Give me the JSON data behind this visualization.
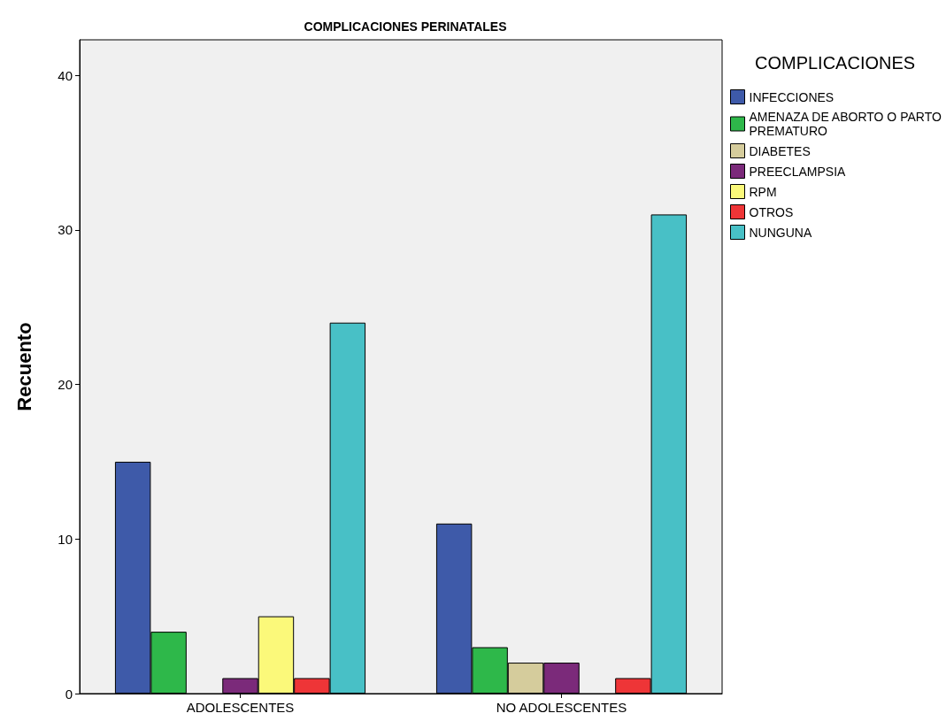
{
  "chart_data": {
    "type": "bar",
    "title": "COMPLICACIONES PERINATALES",
    "ylabel": "Recuento",
    "legend_title": "COMPLICACIONES",
    "categories": [
      "ADOLESCENTES",
      "NO ADOLESCENTES"
    ],
    "series": [
      {
        "name": "INFECCIONES",
        "color": "#3e5aa9",
        "values": [
          15,
          11
        ]
      },
      {
        "name": "AMENAZA DE ABORTO O PARTO PREMATURO",
        "color": "#2eb84a",
        "values": [
          4,
          3
        ]
      },
      {
        "name": "DIABETES",
        "color": "#d5cc9c",
        "values": [
          null,
          2
        ]
      },
      {
        "name": "PREECLAMPSIA",
        "color": "#7b2a7a",
        "values": [
          1,
          2
        ]
      },
      {
        "name": "RPM",
        "color": "#fbf97a",
        "values": [
          5,
          null
        ]
      },
      {
        "name": "OTROS",
        "color": "#ee3537",
        "values": [
          1,
          1
        ]
      },
      {
        "name": "NUNGUNA",
        "color": "#48c0c6",
        "values": [
          24,
          31
        ]
      }
    ],
    "ylim": [
      0,
      42.3
    ],
    "yticks": [
      0,
      10,
      20,
      30,
      40
    ],
    "grid": false,
    "legend": "top right"
  }
}
